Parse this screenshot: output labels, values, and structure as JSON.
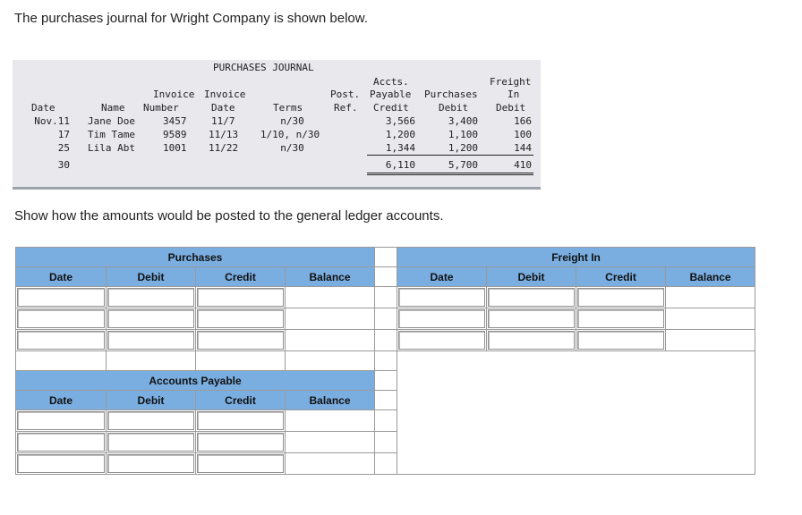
{
  "intro_text": "The purchases journal for Wright Company is shown below.",
  "journal": {
    "title": "PURCHASES JOURNAL",
    "headers": {
      "invoice1": "Invoice",
      "invoice2": "Invoice",
      "accts": "Accts.",
      "freight": "Freight",
      "post": "Post.",
      "payable": "Payable",
      "purchases": "Purchases",
      "in": "In",
      "date": "Date",
      "name": "Name",
      "number": "Number",
      "inv_date": "Date",
      "terms": "Terms",
      "ref": "Ref.",
      "credit": "Credit",
      "debit": "Debit",
      "debit2": "Debit"
    },
    "rows": [
      {
        "date": "Nov.11",
        "name": "Jane Doe",
        "number": "3457",
        "inv_date": "11/7",
        "terms": "n/30",
        "ap": "3,566",
        "purch": "3,400",
        "freight": "166"
      },
      {
        "date": "17",
        "name": "Tim Tame",
        "number": "9589",
        "inv_date": "11/13",
        "terms": "1/10, n/30",
        "ap": "1,200",
        "purch": "1,100",
        "freight": "100"
      },
      {
        "date": "25",
        "name": "Lila Abt",
        "number": "1001",
        "inv_date": "11/22",
        "terms": "n/30",
        "ap": "1,344",
        "purch": "1,200",
        "freight": "144"
      }
    ],
    "total": {
      "date": "30",
      "ap": "6,110",
      "purch": "5,700",
      "freight": "410"
    }
  },
  "instruction_text": "Show how the amounts would be posted to the general ledger accounts.",
  "purchases_account": {
    "title": "Purchases",
    "columns": [
      "Date",
      "Debit",
      "Credit",
      "Balance"
    ]
  },
  "freight_account": {
    "title": "Freight In",
    "columns": [
      "Date",
      "Debit",
      "Credit",
      "Balance"
    ]
  },
  "ap_account": {
    "title": "Accounts Payable",
    "columns": [
      "Date",
      "Debit",
      "Credit",
      "Balance"
    ]
  }
}
